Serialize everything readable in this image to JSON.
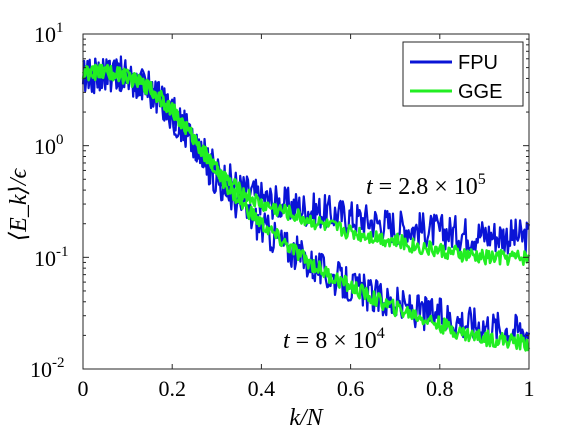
{
  "chart_data": {
    "type": "line",
    "xlabel": "k/N",
    "ylabel": "⟨E_k⟩/ϵ",
    "xlim": [
      0,
      1
    ],
    "ylim": [
      0.01,
      10
    ],
    "yscale": "log",
    "x_ticks": [
      "0",
      "0.2",
      "0.4",
      "0.6",
      "0.8",
      "1"
    ],
    "y_ticks": [
      {
        "base": "10",
        "exp": "1",
        "value": 10
      },
      {
        "base": "10",
        "exp": "0",
        "value": 1
      },
      {
        "base": "10",
        "exp": "-1",
        "value": 0.1
      },
      {
        "base": "10",
        "exp": "-2",
        "value": 0.01
      }
    ],
    "legend": {
      "position": "top-right",
      "entries": [
        {
          "name": "FPU",
          "color": "#0a14d6"
        },
        {
          "name": "GGE",
          "color": "#22ee22"
        }
      ]
    },
    "annotations": [
      {
        "lhs": "t",
        "eq": " = 2.8 × 10",
        "exp": "5",
        "x": 0.64,
        "y": 0.5
      },
      {
        "lhs": "t",
        "eq": " = 8 × 10",
        "exp": "4",
        "x": 0.4,
        "y": 0.016
      }
    ],
    "series": [
      {
        "name": "FPU",
        "color": "#0a14d6",
        "curve": "t=2.8e5",
        "x": [
          0,
          0.05,
          0.1,
          0.15,
          0.2,
          0.25,
          0.3,
          0.35,
          0.4,
          0.45,
          0.5,
          0.55,
          0.6,
          0.65,
          0.7,
          0.75,
          0.8,
          0.85,
          0.9,
          0.95,
          1.0
        ],
        "y": [
          4.2,
          4.5,
          4.3,
          3.2,
          2.0,
          1.1,
          0.58,
          0.42,
          0.34,
          0.3,
          0.27,
          0.25,
          0.23,
          0.21,
          0.19,
          0.18,
          0.17,
          0.165,
          0.16,
          0.155,
          0.15
        ]
      },
      {
        "name": "GGE",
        "color": "#22ee22",
        "curve": "t=2.8e5",
        "x": [
          0,
          0.05,
          0.1,
          0.15,
          0.2,
          0.25,
          0.3,
          0.35,
          0.4,
          0.45,
          0.5,
          0.55,
          0.6,
          0.65,
          0.7,
          0.75,
          0.8,
          0.85,
          0.9,
          0.95,
          1.0
        ],
        "y": [
          4.5,
          4.6,
          4.1,
          3.3,
          2.1,
          1.15,
          0.6,
          0.4,
          0.3,
          0.26,
          0.22,
          0.19,
          0.17,
          0.155,
          0.14,
          0.125,
          0.115,
          0.105,
          0.1,
          0.1,
          0.1
        ]
      },
      {
        "name": "FPU",
        "color": "#0a14d6",
        "curve": "t=8e4",
        "x": [
          0,
          0.05,
          0.1,
          0.15,
          0.2,
          0.25,
          0.3,
          0.35,
          0.4,
          0.45,
          0.5,
          0.55,
          0.6,
          0.65,
          0.7,
          0.75,
          0.8,
          0.85,
          0.9,
          0.95,
          1.0
        ],
        "y": [
          4.0,
          4.4,
          4.2,
          3.1,
          1.9,
          1.0,
          0.5,
          0.3,
          0.19,
          0.13,
          0.095,
          0.07,
          0.055,
          0.045,
          0.038,
          0.033,
          0.03,
          0.027,
          0.025,
          0.023,
          0.022
        ]
      },
      {
        "name": "GGE",
        "color": "#22ee22",
        "curve": "t=8e4",
        "x": [
          0,
          0.05,
          0.1,
          0.15,
          0.2,
          0.25,
          0.3,
          0.35,
          0.4,
          0.45,
          0.5,
          0.55,
          0.6,
          0.65,
          0.7,
          0.75,
          0.8,
          0.85,
          0.9,
          0.95,
          1.0
        ],
        "y": [
          4.5,
          4.6,
          4.1,
          3.3,
          2.1,
          1.15,
          0.58,
          0.32,
          0.2,
          0.135,
          0.095,
          0.07,
          0.055,
          0.043,
          0.035,
          0.03,
          0.025,
          0.021,
          0.019,
          0.018,
          0.017
        ]
      }
    ]
  }
}
